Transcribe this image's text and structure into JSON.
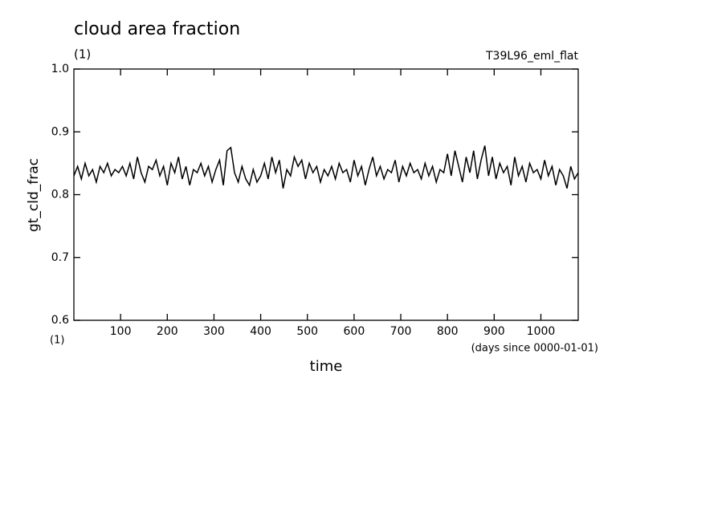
{
  "chart_data": {
    "type": "line",
    "title": "cloud area fraction",
    "unit_top": "(1)",
    "run_label": "T39L96_eml_flat",
    "ylabel": "gt_cld_frac",
    "xlabel": "time",
    "x_unit": "(1)",
    "x_note": "(days since 0000-01-01)",
    "color": "#000000",
    "xlim": [
      0,
      1080
    ],
    "ylim": [
      0.6,
      1
    ],
    "xticks": [
      100,
      200,
      300,
      400,
      500,
      600,
      700,
      800,
      900,
      1000
    ],
    "yticks": [
      0.6,
      0.7,
      0.8,
      0.9,
      {
        "value": 1,
        "label": "1.0"
      }
    ],
    "x": [
      0,
      8,
      16,
      24,
      32,
      40,
      48,
      56,
      64,
      72,
      80,
      88,
      96,
      104,
      112,
      120,
      128,
      136,
      144,
      152,
      160,
      168,
      176,
      184,
      192,
      200,
      208,
      216,
      224,
      232,
      240,
      248,
      256,
      264,
      272,
      280,
      288,
      296,
      304,
      312,
      320,
      328,
      336,
      344,
      352,
      360,
      368,
      376,
      384,
      392,
      400,
      408,
      416,
      424,
      432,
      440,
      448,
      456,
      464,
      472,
      480,
      488,
      496,
      504,
      512,
      520,
      528,
      536,
      544,
      552,
      560,
      568,
      576,
      584,
      592,
      600,
      608,
      616,
      624,
      632,
      640,
      648,
      656,
      664,
      672,
      680,
      688,
      696,
      704,
      712,
      720,
      728,
      736,
      744,
      752,
      760,
      768,
      776,
      784,
      792,
      800,
      808,
      816,
      824,
      832,
      840,
      848,
      856,
      864,
      872,
      880,
      888,
      896,
      904,
      912,
      920,
      928,
      936,
      944,
      952,
      960,
      968,
      976,
      984,
      992,
      1000,
      1008,
      1016,
      1024,
      1032,
      1040,
      1048,
      1056,
      1064,
      1072,
      1080
    ],
    "values": [
      0.83,
      0.845,
      0.825,
      0.85,
      0.83,
      0.84,
      0.82,
      0.845,
      0.835,
      0.85,
      0.83,
      0.84,
      0.835,
      0.845,
      0.83,
      0.85,
      0.825,
      0.86,
      0.835,
      0.82,
      0.845,
      0.84,
      0.855,
      0.83,
      0.845,
      0.815,
      0.85,
      0.835,
      0.86,
      0.825,
      0.845,
      0.815,
      0.84,
      0.835,
      0.85,
      0.83,
      0.845,
      0.82,
      0.84,
      0.855,
      0.815,
      0.87,
      0.875,
      0.835,
      0.82,
      0.845,
      0.825,
      0.815,
      0.84,
      0.82,
      0.83,
      0.85,
      0.825,
      0.86,
      0.835,
      0.855,
      0.81,
      0.84,
      0.83,
      0.86,
      0.845,
      0.855,
      0.825,
      0.85,
      0.835,
      0.845,
      0.82,
      0.84,
      0.83,
      0.845,
      0.825,
      0.85,
      0.835,
      0.84,
      0.82,
      0.855,
      0.83,
      0.845,
      0.815,
      0.84,
      0.86,
      0.83,
      0.845,
      0.825,
      0.84,
      0.835,
      0.855,
      0.82,
      0.845,
      0.83,
      0.85,
      0.835,
      0.84,
      0.825,
      0.85,
      0.83,
      0.845,
      0.82,
      0.84,
      0.835,
      0.865,
      0.83,
      0.87,
      0.845,
      0.82,
      0.86,
      0.835,
      0.87,
      0.825,
      0.855,
      0.878,
      0.83,
      0.86,
      0.825,
      0.85,
      0.835,
      0.845,
      0.815,
      0.86,
      0.83,
      0.845,
      0.82,
      0.85,
      0.835,
      0.84,
      0.825,
      0.855,
      0.83,
      0.845,
      0.815,
      0.84,
      0.83,
      0.81,
      0.845,
      0.825,
      0.835
    ]
  }
}
